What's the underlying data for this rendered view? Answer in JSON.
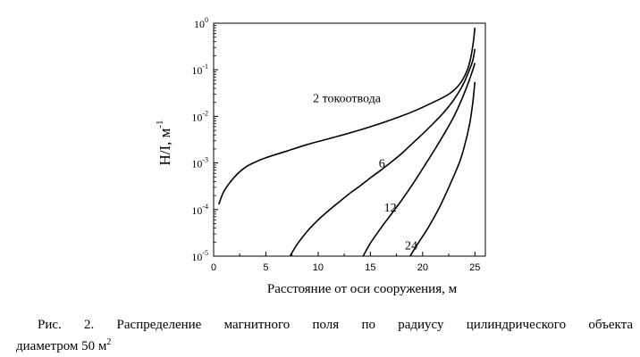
{
  "chart_data": {
    "type": "line",
    "xlabel": "Расстояние от оси сооружения,  м",
    "ylabel": "H/I,  м",
    "ylabel_exponent": "-1",
    "xlim": [
      0,
      26
    ],
    "ylim": [
      1e-05,
      1
    ],
    "yscale": "log",
    "grid": false,
    "x_ticks": [
      {
        "value": 0,
        "label": "0"
      },
      {
        "value": 5,
        "label": "5"
      },
      {
        "value": 10,
        "label": "10"
      },
      {
        "value": 15,
        "label": "15"
      },
      {
        "value": 20,
        "label": "20"
      },
      {
        "value": 25,
        "label": "25"
      }
    ],
    "y_ticks": [
      {
        "value": 1,
        "base": "10",
        "exp": "0"
      },
      {
        "value": 0.1,
        "base": "10",
        "exp": "-1"
      },
      {
        "value": 0.01,
        "base": "10",
        "exp": "-2"
      },
      {
        "value": 0.001,
        "base": "10",
        "exp": "-3"
      },
      {
        "value": 0.0001,
        "base": "10",
        "exp": "-4"
      },
      {
        "value": 1e-05,
        "base": "10",
        "exp": "-5"
      }
    ],
    "series": [
      {
        "name": "2 токоотвода",
        "label_at": {
          "x": 9.5,
          "y": 0.02
        },
        "points": [
          [
            0.5,
            0.00013
          ],
          [
            1,
            0.00025
          ],
          [
            2,
            0.0005
          ],
          [
            3,
            0.0008
          ],
          [
            4,
            0.00105
          ],
          [
            5,
            0.0013
          ],
          [
            7,
            0.0018
          ],
          [
            9,
            0.0025
          ],
          [
            11,
            0.0033
          ],
          [
            13,
            0.0044
          ],
          [
            15,
            0.006
          ],
          [
            17,
            0.0085
          ],
          [
            19,
            0.0125
          ],
          [
            21,
            0.02
          ],
          [
            22.5,
            0.03
          ],
          [
            23.5,
            0.048
          ],
          [
            24.2,
            0.09
          ],
          [
            24.6,
            0.18
          ],
          [
            24.85,
            0.4
          ],
          [
            25,
            0.8
          ]
        ]
      },
      {
        "name": "6",
        "label_at": {
          "x": 15.8,
          "y": 0.0008
        },
        "points": [
          [
            7.3,
            1e-05
          ],
          [
            8,
            1.8e-05
          ],
          [
            9,
            3.5e-05
          ],
          [
            10,
            6e-05
          ],
          [
            11,
            9.5e-05
          ],
          [
            12,
            0.000145
          ],
          [
            13,
            0.00022
          ],
          [
            14,
            0.00032
          ],
          [
            15,
            0.00048
          ],
          [
            16,
            0.0007
          ],
          [
            17,
            0.00105
          ],
          [
            18,
            0.0016
          ],
          [
            19,
            0.0026
          ],
          [
            20,
            0.0042
          ],
          [
            21,
            0.007
          ],
          [
            22,
            0.012
          ],
          [
            23,
            0.023
          ],
          [
            23.8,
            0.045
          ],
          [
            24.4,
            0.09
          ],
          [
            24.8,
            0.16
          ],
          [
            25,
            0.28
          ]
        ]
      },
      {
        "name": "12",
        "label_at": {
          "x": 16.3,
          "y": 9e-05
        },
        "points": [
          [
            14.3,
            1e-05
          ],
          [
            15,
            1.9e-05
          ],
          [
            16,
            4e-05
          ],
          [
            17,
            8e-05
          ],
          [
            18,
            0.00016
          ],
          [
            19,
            0.00034
          ],
          [
            20,
            0.00075
          ],
          [
            21,
            0.0017
          ],
          [
            22,
            0.004
          ],
          [
            23,
            0.01
          ],
          [
            23.8,
            0.025
          ],
          [
            24.4,
            0.055
          ],
          [
            24.8,
            0.1
          ],
          [
            25,
            0.14
          ]
        ]
      },
      {
        "name": "24",
        "label_at": {
          "x": 18.3,
          "y": 1.4e-05
        },
        "points": [
          [
            18.8,
            1e-05
          ],
          [
            19.5,
            1.8e-05
          ],
          [
            20.5,
            4e-05
          ],
          [
            21.5,
            0.0001
          ],
          [
            22.5,
            0.0003
          ],
          [
            23.5,
            0.001
          ],
          [
            24,
            0.0023
          ],
          [
            24.5,
            0.007
          ],
          [
            24.8,
            0.02
          ],
          [
            25,
            0.055
          ]
        ]
      }
    ]
  },
  "caption": {
    "line1": "Рис.  2.  Распределение  магнитного  поля  по  радиусу  цилиндрического  объекта",
    "line2_text": "диаметром 50 м",
    "line2_sup": "2"
  }
}
